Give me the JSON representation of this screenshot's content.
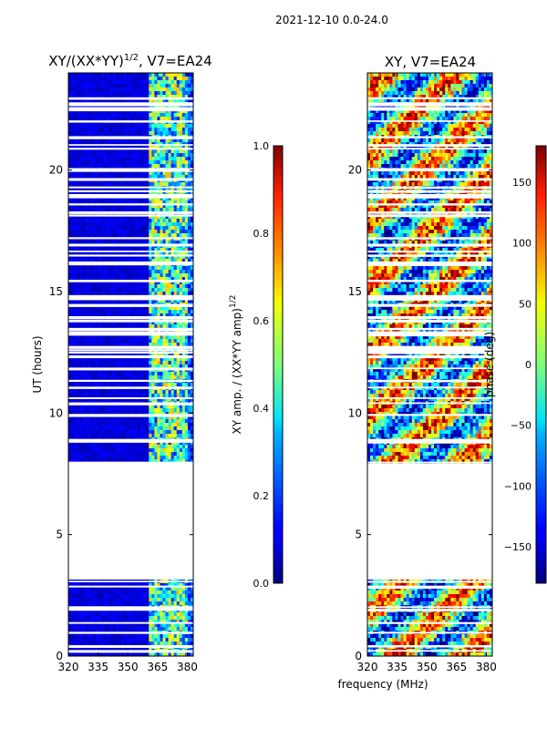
{
  "figure": {
    "suptitle": "2021-12-10 0.0-24.0",
    "shared_xlabel": "frequency (MHz)"
  },
  "chart_data": [
    {
      "type": "heatmap",
      "title_main": "XY/(XX*YY)",
      "title_sup": "1/2",
      "title_suffix": ", V7=EA24",
      "ylabel": "UT (hours)",
      "xlim": [
        320,
        383
      ],
      "ylim": [
        0,
        24
      ],
      "xticks": [
        320,
        335,
        350,
        365,
        380
      ],
      "yticks": [
        0,
        5,
        10,
        15,
        20
      ],
      "colorbar": {
        "label_main": "XY amp. / (XX*YY amp)",
        "label_sup": "1/2",
        "range": [
          0.0,
          1.0
        ],
        "ticks": [
          "0.0",
          "0.2",
          "0.4",
          "0.6",
          "0.8",
          "1.0"
        ],
        "colormap": "jet"
      }
    },
    {
      "type": "heatmap",
      "title": "XY, V7=EA24",
      "xlim": [
        320,
        383
      ],
      "ylim": [
        0,
        24
      ],
      "xticks": [
        320,
        335,
        350,
        365,
        380
      ],
      "yticks": [
        0,
        5,
        10,
        15,
        20
      ],
      "colorbar": {
        "label": "phase (deg)",
        "range": [
          -180,
          180
        ],
        "ticks": [
          "150",
          "100",
          "50",
          "0",
          "−50",
          "−100",
          "−150"
        ],
        "colormap": "jet"
      }
    }
  ],
  "data_gaps_hours": [
    [
      3.2,
      8.0
    ],
    [
      21.3,
      21.5
    ],
    [
      14.2,
      14.5
    ],
    [
      0.2,
      0.4
    ],
    [
      1.9,
      2.1
    ]
  ],
  "colors": {
    "jet_dark_blue": "#00007f",
    "jet_blue": "#0000ff",
    "jet_cyan": "#00ffff",
    "jet_yellow": "#ffff00",
    "jet_red": "#ff0000",
    "jet_dark_red": "#7f0000"
  }
}
